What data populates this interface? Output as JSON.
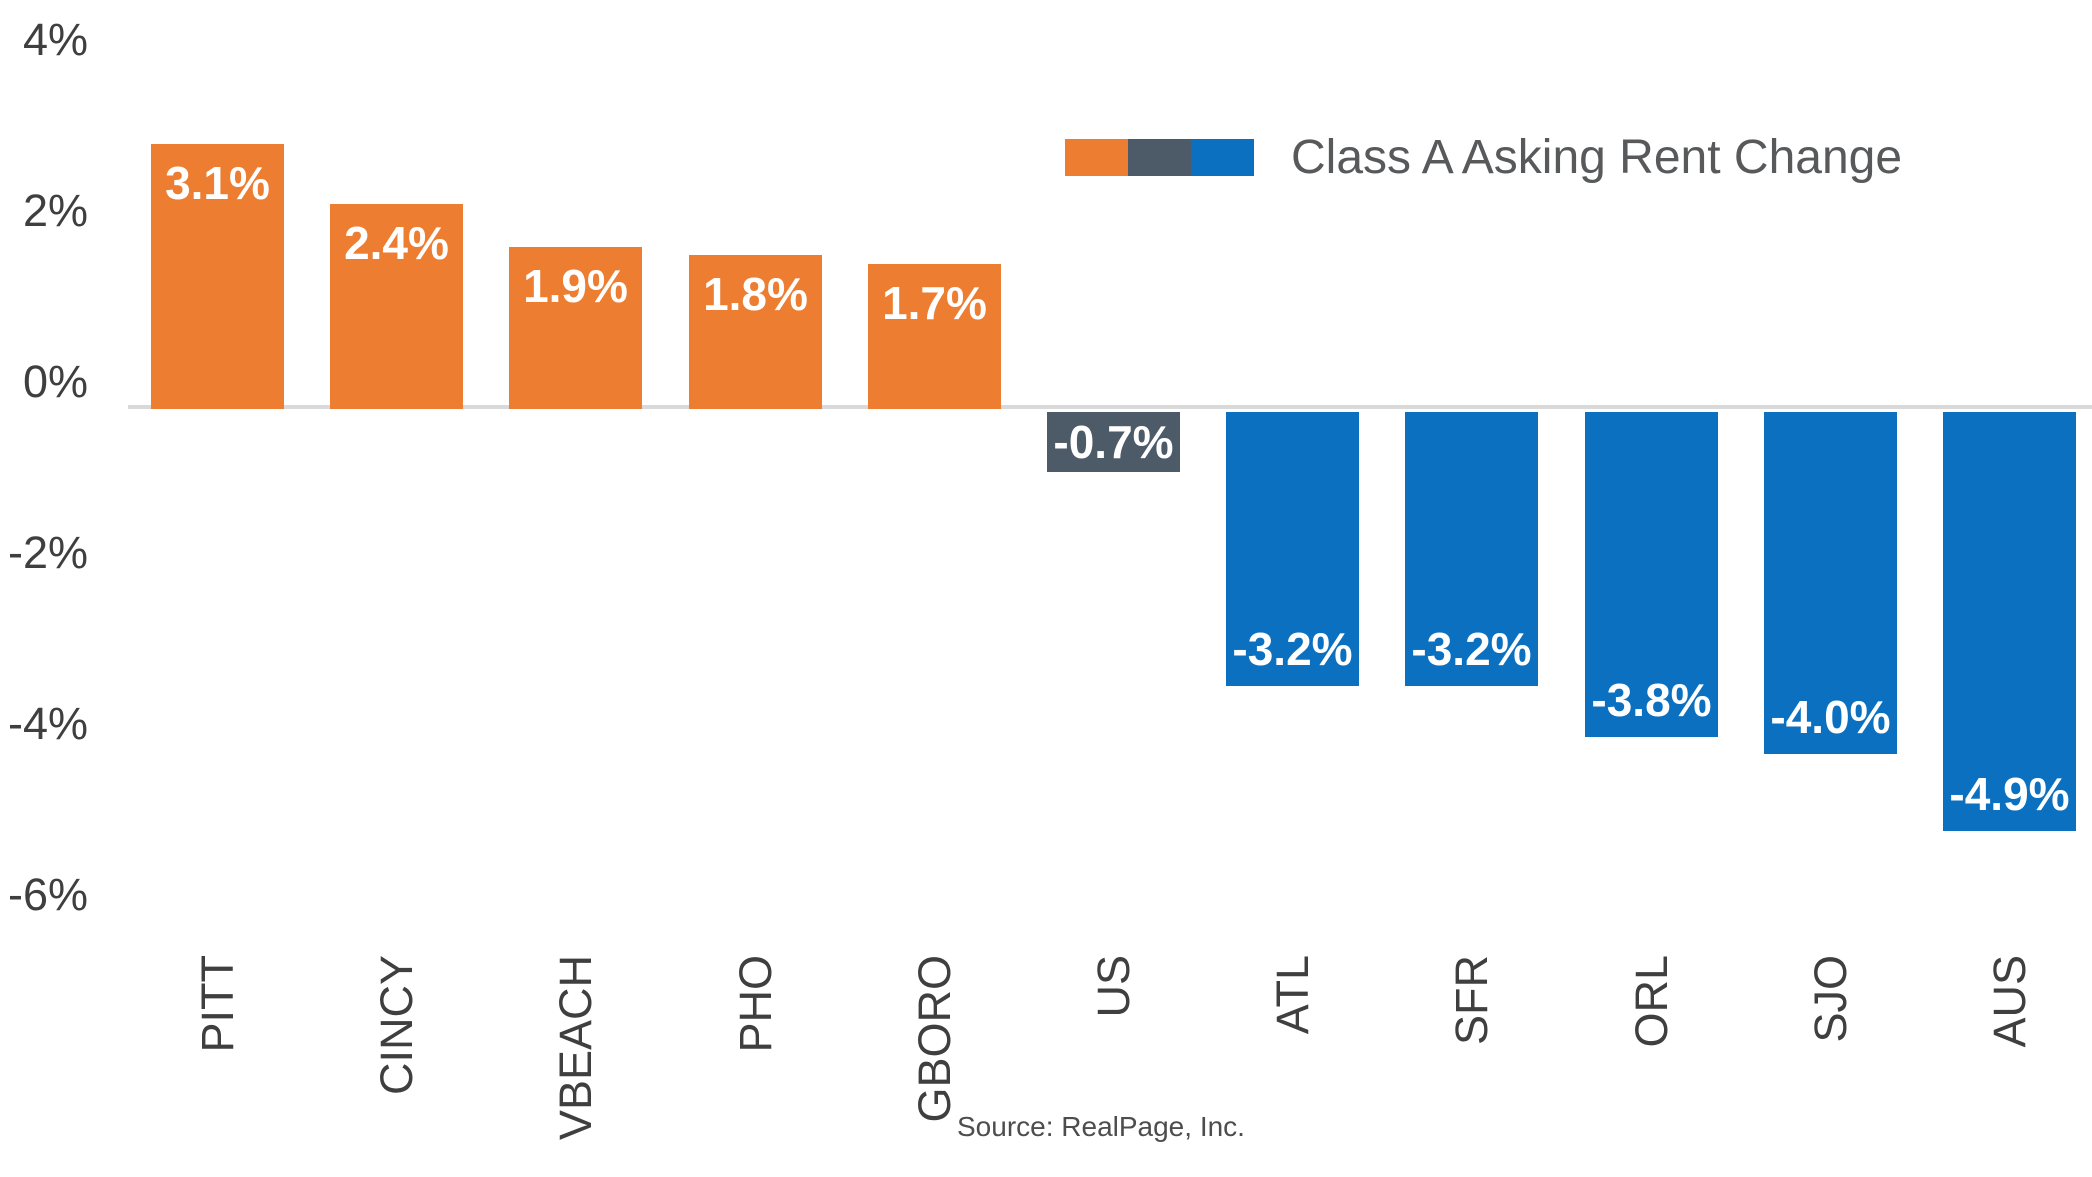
{
  "chart_data": {
    "type": "bar",
    "categories": [
      "PITT",
      "CINCY",
      "VBEACH",
      "PHO",
      "GBORO",
      "US",
      "ATL",
      "SFR",
      "ORL",
      "SJO",
      "AUS"
    ],
    "values": [
      3.1,
      2.4,
      1.9,
      1.8,
      1.7,
      -0.7,
      -3.2,
      -3.2,
      -3.8,
      -4.0,
      -4.9
    ],
    "bar_labels": [
      "3.1%",
      "2.4%",
      "1.9%",
      "1.8%",
      "1.7%",
      "-0.7%",
      "-3.2%",
      "-3.2%",
      "-3.8%",
      "-4.0%",
      "-4.9%"
    ],
    "bar_colors": [
      "#ED7D31",
      "#ED7D31",
      "#ED7D31",
      "#ED7D31",
      "#ED7D31",
      "#4D5A68",
      "#0B70C0",
      "#0B70C0",
      "#0B70C0",
      "#0B70C0",
      "#0B70C0"
    ],
    "yticks": [
      {
        "label": "4%",
        "value": 4
      },
      {
        "label": "2%",
        "value": 2
      },
      {
        "label": "0%",
        "value": 0
      },
      {
        "label": "-2%",
        "value": -2
      },
      {
        "label": "-4%",
        "value": -4
      },
      {
        "label": "-6%",
        "value": -6
      }
    ],
    "ylim": [
      -6,
      4.5
    ],
    "grid": false,
    "zero_line_color": "#D9D9D9",
    "legend": {
      "label": "Class A Asking Rent Change",
      "swatch_colors": [
        "#ED7D31",
        "#4D5A68",
        "#0B70C0"
      ],
      "position": "top-right-inside"
    },
    "text_colors": {
      "axis": "#3F3F3F",
      "legend": "#58595B",
      "source": "#4D4D4D",
      "bar_value": "#FFFFFF"
    },
    "xlabel": "",
    "ylabel": "",
    "source": "Source: RealPage, Inc."
  }
}
